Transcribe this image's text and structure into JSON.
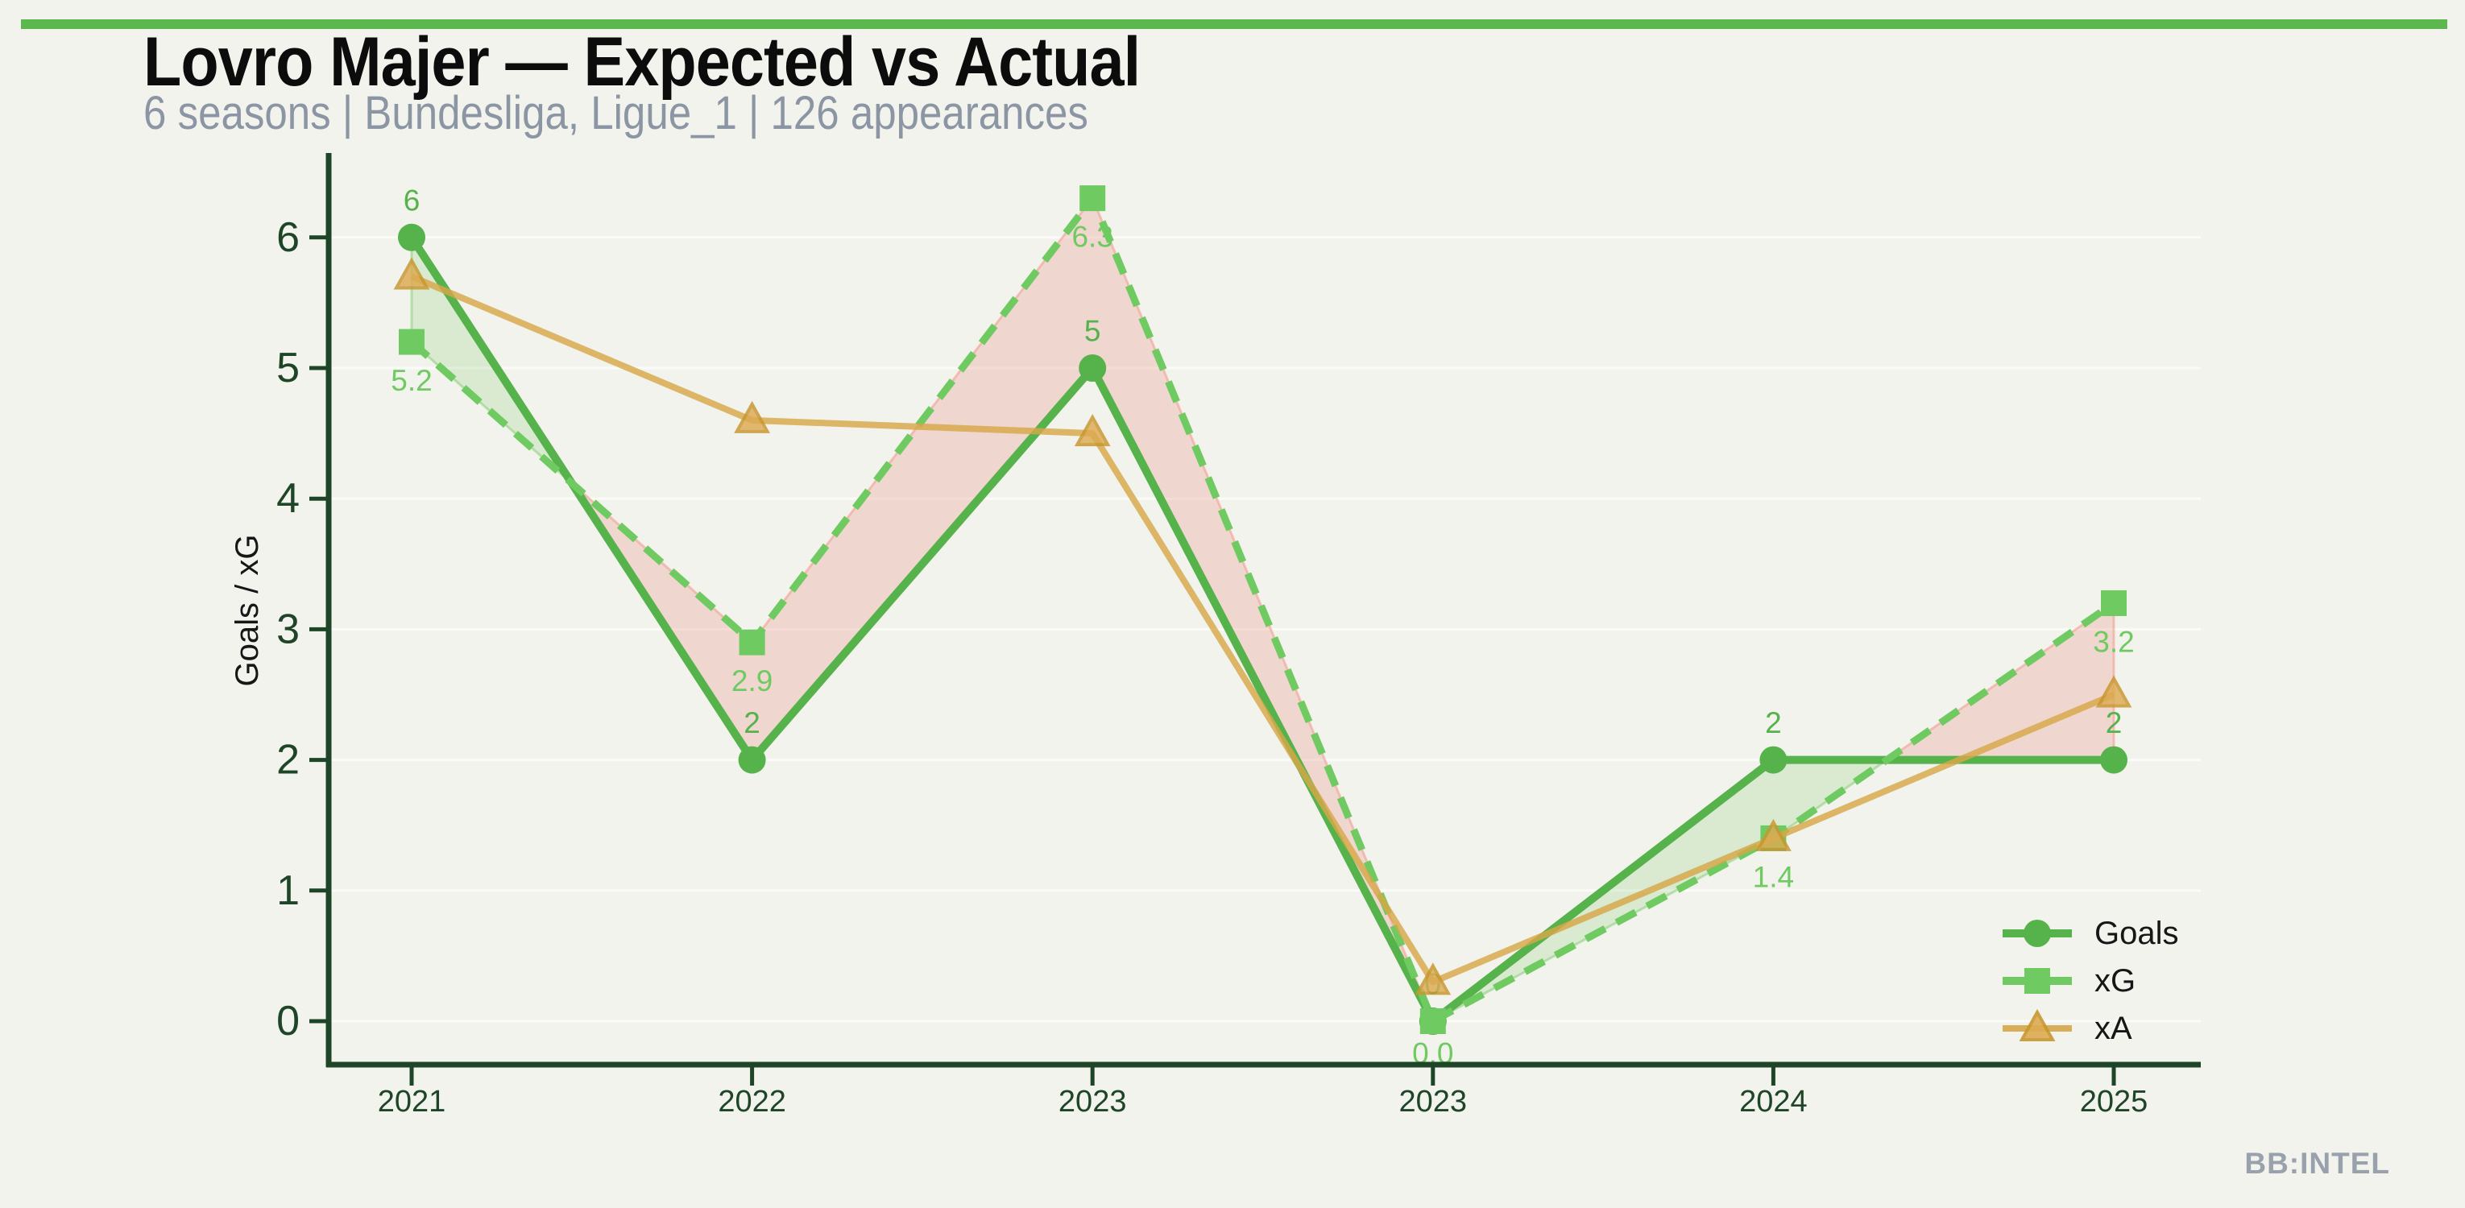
{
  "header": {
    "title": "Lovro Majer — Expected vs Actual",
    "subtitle": "6 seasons | Bundesliga, Ligue_1 | 126 appearances"
  },
  "watermark": "BB:INTEL",
  "colors": {
    "background": "#f2f3ec",
    "top_bar": "#5cb84e",
    "axis": "#1e4527",
    "title_text": "#0c0c0c",
    "subtitle_text": "#8b95a3",
    "legend_text": "#161616",
    "watermark_text": "#99a1ac",
    "goals": "#56b24a",
    "xg": "#70ca62",
    "xa": "#d7a748",
    "xa_edge": "#c8962e",
    "fill_over": "rgba(120,200,100,0.20)",
    "fill_over_edge": "rgba(120,200,100,0.45)",
    "fill_under": "rgba(230,130,120,0.26)",
    "fill_under_edge": "rgba(240,160,150,0.60)",
    "gridline": "rgba(255,255,255,0.65)"
  },
  "chart_data": {
    "type": "line",
    "title": "Lovro Majer — Expected vs Actual",
    "categories": [
      "2021",
      "2022",
      "2023",
      "2023",
      "2024",
      "2025"
    ],
    "series": [
      {
        "name": "Goals",
        "marker": "circle",
        "line": "solid",
        "color": "#56b24a",
        "values": [
          6,
          2,
          5,
          0,
          2,
          2
        ],
        "labels": [
          "6",
          "2",
          "5",
          "0",
          "2",
          "2"
        ],
        "label_side": "above"
      },
      {
        "name": "xG",
        "marker": "square",
        "line": "dashed",
        "color": "#70ca62",
        "values": [
          5.2,
          2.9,
          6.3,
          0.0,
          1.4,
          3.2
        ],
        "labels": [
          "5.2",
          "2.9",
          "6.3",
          "0.0",
          "1.4",
          "3.2"
        ],
        "label_side": "below"
      },
      {
        "name": "xA",
        "marker": "triangle",
        "line": "solid",
        "color": "#d7a748",
        "values": [
          5.7,
          4.6,
          4.5,
          0.3,
          1.4,
          2.5
        ],
        "labels": null,
        "label_side": "none"
      }
    ],
    "fill_between": {
      "upper": "Goals",
      "lower": "xG",
      "color_when_goals_above": "light-green",
      "color_when_xg_above": "light-pink"
    },
    "xlabel": "",
    "ylabel": "Goals / xG",
    "yticks": [
      0,
      1,
      2,
      3,
      4,
      5,
      6
    ],
    "ylim": [
      -0.33,
      6.65
    ],
    "grid": "horizontal",
    "legend_position": "lower right"
  },
  "legend": {
    "items": [
      {
        "label": "Goals"
      },
      {
        "label": "xG"
      },
      {
        "label": "xA"
      }
    ]
  }
}
